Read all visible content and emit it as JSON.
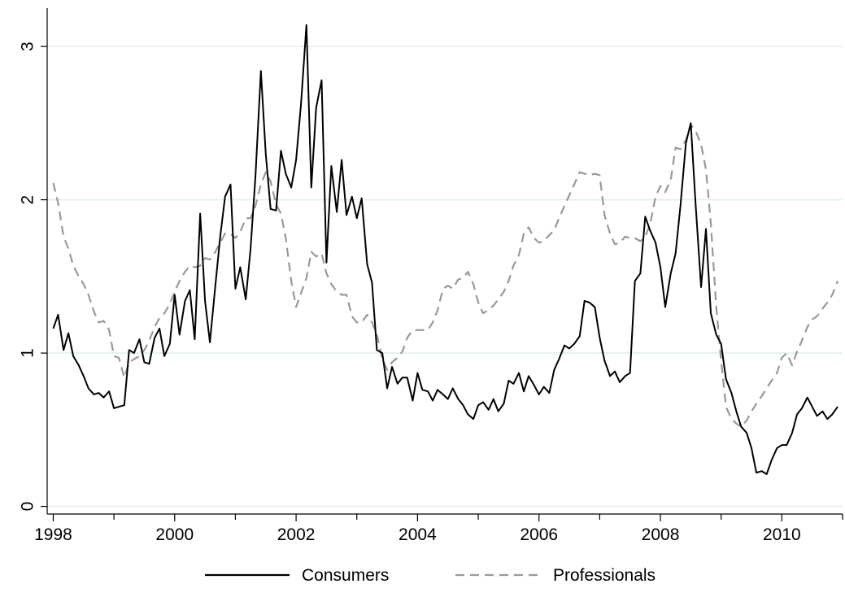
{
  "chart_data": {
    "type": "line",
    "title": "",
    "xlabel": "",
    "ylabel": "",
    "xlim": [
      1997.9,
      2011.0
    ],
    "ylim": [
      -0.05,
      3.25
    ],
    "x_ticks": [
      1998,
      2000,
      2002,
      2004,
      2006,
      2008,
      2010
    ],
    "x_tick_labels": [
      "1998",
      "2000",
      "2002",
      "2004",
      "2006",
      "2008",
      "2010"
    ],
    "y_ticks": [
      0,
      1,
      2,
      3
    ],
    "y_tick_labels": [
      "0",
      "1",
      "2",
      "3"
    ],
    "grid": "horizontal",
    "legend_position": "bottom",
    "series": [
      {
        "name": "Consumers",
        "color": "#000000",
        "dash": "solid",
        "x": [
          1998.0,
          1998.08,
          1998.17,
          1998.25,
          1998.33,
          1998.42,
          1998.5,
          1998.58,
          1998.67,
          1998.75,
          1998.83,
          1998.92,
          1999.0,
          1999.08,
          1999.17,
          1999.25,
          1999.33,
          1999.42,
          1999.5,
          1999.58,
          1999.67,
          1999.75,
          1999.83,
          1999.92,
          2000.0,
          2000.08,
          2000.17,
          2000.25,
          2000.33,
          2000.42,
          2000.5,
          2000.58,
          2000.67,
          2000.75,
          2000.83,
          2000.92,
          2001.0,
          2001.08,
          2001.17,
          2001.25,
          2001.33,
          2001.42,
          2001.5,
          2001.58,
          2001.67,
          2001.75,
          2001.83,
          2001.92,
          2002.0,
          2002.08,
          2002.17,
          2002.25,
          2002.33,
          2002.42,
          2002.5,
          2002.58,
          2002.67,
          2002.75,
          2002.83,
          2002.92,
          2003.0,
          2003.08,
          2003.17,
          2003.25,
          2003.33,
          2003.42,
          2003.5,
          2003.58,
          2003.67,
          2003.75,
          2003.83,
          2003.92,
          2004.0,
          2004.08,
          2004.17,
          2004.25,
          2004.33,
          2004.42,
          2004.5,
          2004.58,
          2004.67,
          2004.75,
          2004.83,
          2004.92,
          2005.0,
          2005.08,
          2005.17,
          2005.25,
          2005.33,
          2005.42,
          2005.5,
          2005.58,
          2005.67,
          2005.75,
          2005.83,
          2005.92,
          2006.0,
          2006.08,
          2006.17,
          2006.25,
          2006.33,
          2006.42,
          2006.5,
          2006.58,
          2006.67,
          2006.75,
          2006.83,
          2006.92,
          2007.0,
          2007.08,
          2007.17,
          2007.25,
          2007.33,
          2007.42,
          2007.5,
          2007.58,
          2007.67,
          2007.75,
          2007.83,
          2007.92,
          2008.0,
          2008.08,
          2008.17,
          2008.25,
          2008.33,
          2008.42,
          2008.5,
          2008.58,
          2008.67,
          2008.75,
          2008.83,
          2008.92,
          2009.0,
          2009.08,
          2009.17,
          2009.25,
          2009.33,
          2009.42,
          2009.5,
          2009.58,
          2009.67,
          2009.75,
          2009.83,
          2009.92,
          2010.0,
          2010.08,
          2010.17,
          2010.25,
          2010.33,
          2010.42,
          2010.5,
          2010.58,
          2010.67,
          2010.75,
          2010.83,
          2010.92
        ],
        "values": [
          1.16,
          1.25,
          1.02,
          1.13,
          0.98,
          0.92,
          0.85,
          0.77,
          0.73,
          0.74,
          0.71,
          0.75,
          0.64,
          0.65,
          0.66,
          1.02,
          1.0,
          1.09,
          0.94,
          0.93,
          1.1,
          1.16,
          0.98,
          1.06,
          1.38,
          1.12,
          1.34,
          1.41,
          1.09,
          1.91,
          1.34,
          1.07,
          1.44,
          1.76,
          2.02,
          2.1,
          1.42,
          1.56,
          1.35,
          1.68,
          2.15,
          2.84,
          2.3,
          1.94,
          1.93,
          2.32,
          2.17,
          2.08,
          2.26,
          2.62,
          3.14,
          2.08,
          2.6,
          2.78,
          1.59,
          2.22,
          1.92,
          2.26,
          1.9,
          2.02,
          1.88,
          2.01,
          1.58,
          1.46,
          1.02,
          1.0,
          0.77,
          0.91,
          0.8,
          0.84,
          0.84,
          0.69,
          0.87,
          0.76,
          0.75,
          0.69,
          0.76,
          0.73,
          0.7,
          0.77,
          0.7,
          0.66,
          0.6,
          0.57,
          0.66,
          0.68,
          0.63,
          0.7,
          0.62,
          0.67,
          0.82,
          0.8,
          0.87,
          0.75,
          0.85,
          0.79,
          0.73,
          0.78,
          0.74,
          0.89,
          0.96,
          1.05,
          1.03,
          1.06,
          1.11,
          1.34,
          1.33,
          1.3,
          1.1,
          0.95,
          0.85,
          0.88,
          0.81,
          0.85,
          0.87,
          1.47,
          1.52,
          1.89,
          1.8,
          1.72,
          1.56,
          1.3,
          1.52,
          1.65,
          1.96,
          2.37,
          2.5,
          1.97,
          1.43,
          1.81,
          1.26,
          1.12,
          1.06,
          0.83,
          0.74,
          0.62,
          0.52,
          0.48,
          0.38,
          0.22,
          0.23,
          0.21,
          0.3,
          0.38,
          0.4,
          0.4,
          0.48,
          0.6,
          0.64,
          0.71,
          0.65,
          0.59,
          0.62,
          0.57,
          0.6,
          0.65
        ]
      },
      {
        "name": "Professionals",
        "color": "#999999",
        "dash": "dashed",
        "x": [
          1998.0,
          1998.08,
          1998.17,
          1998.25,
          1998.33,
          1998.42,
          1998.5,
          1998.58,
          1998.67,
          1998.75,
          1998.83,
          1998.92,
          1999.0,
          1999.08,
          1999.17,
          1999.25,
          1999.33,
          1999.42,
          1999.5,
          1999.58,
          1999.67,
          1999.75,
          1999.83,
          1999.92,
          2000.0,
          2000.08,
          2000.17,
          2000.25,
          2000.33,
          2000.42,
          2000.5,
          2000.58,
          2000.67,
          2000.75,
          2000.83,
          2000.92,
          2001.0,
          2001.08,
          2001.17,
          2001.25,
          2001.33,
          2001.42,
          2001.5,
          2001.58,
          2001.67,
          2001.75,
          2001.83,
          2001.92,
          2002.0,
          2002.08,
          2002.17,
          2002.25,
          2002.33,
          2002.42,
          2002.5,
          2002.58,
          2002.67,
          2002.75,
          2002.83,
          2002.92,
          2003.0,
          2003.08,
          2003.17,
          2003.25,
          2003.33,
          2003.42,
          2003.5,
          2003.58,
          2003.67,
          2003.75,
          2003.83,
          2003.92,
          2004.0,
          2004.08,
          2004.17,
          2004.25,
          2004.33,
          2004.42,
          2004.5,
          2004.58,
          2004.67,
          2004.75,
          2004.83,
          2004.92,
          2005.0,
          2005.08,
          2005.17,
          2005.25,
          2005.33,
          2005.42,
          2005.5,
          2005.58,
          2005.67,
          2005.75,
          2005.83,
          2005.92,
          2006.0,
          2006.08,
          2006.17,
          2006.25,
          2006.33,
          2006.42,
          2006.5,
          2006.58,
          2006.67,
          2006.75,
          2006.83,
          2006.92,
          2007.0,
          2007.08,
          2007.17,
          2007.25,
          2007.33,
          2007.42,
          2007.5,
          2007.58,
          2007.67,
          2007.75,
          2007.83,
          2007.92,
          2008.0,
          2008.08,
          2008.17,
          2008.25,
          2008.33,
          2008.42,
          2008.5,
          2008.58,
          2008.67,
          2008.75,
          2008.83,
          2008.92,
          2009.0,
          2009.08,
          2009.17,
          2009.25,
          2009.33,
          2009.42,
          2009.5,
          2009.58,
          2009.67,
          2009.75,
          2009.83,
          2009.92,
          2010.0,
          2010.08,
          2010.17,
          2010.25,
          2010.33,
          2010.42,
          2010.5,
          2010.58,
          2010.67,
          2010.75,
          2010.83,
          2010.92
        ],
        "values": [
          2.11,
          1.98,
          1.76,
          1.68,
          1.57,
          1.5,
          1.45,
          1.38,
          1.27,
          1.2,
          1.21,
          1.15,
          0.98,
          0.97,
          0.84,
          0.94,
          0.96,
          0.98,
          1.02,
          1.08,
          1.17,
          1.23,
          1.26,
          1.32,
          1.4,
          1.47,
          1.53,
          1.57,
          1.56,
          1.57,
          1.62,
          1.61,
          1.66,
          1.72,
          1.78,
          1.78,
          1.75,
          1.79,
          1.88,
          1.88,
          1.96,
          2.1,
          2.18,
          2.12,
          1.97,
          1.91,
          1.75,
          1.47,
          1.3,
          1.39,
          1.49,
          1.66,
          1.63,
          1.65,
          1.52,
          1.45,
          1.4,
          1.38,
          1.38,
          1.24,
          1.2,
          1.2,
          1.25,
          1.2,
          1.12,
          0.96,
          0.89,
          0.94,
          0.97,
          1.01,
          1.1,
          1.15,
          1.15,
          1.15,
          1.15,
          1.2,
          1.28,
          1.42,
          1.44,
          1.42,
          1.48,
          1.49,
          1.53,
          1.45,
          1.33,
          1.26,
          1.28,
          1.31,
          1.35,
          1.4,
          1.47,
          1.57,
          1.64,
          1.78,
          1.82,
          1.75,
          1.72,
          1.73,
          1.77,
          1.8,
          1.88,
          1.96,
          2.03,
          2.1,
          2.18,
          2.17,
          2.16,
          2.17,
          2.16,
          1.9,
          1.78,
          1.71,
          1.72,
          1.76,
          1.75,
          1.75,
          1.73,
          1.76,
          1.84,
          2.02,
          2.09,
          2.05,
          2.13,
          2.34,
          2.33,
          2.39,
          2.49,
          2.45,
          2.36,
          2.2,
          1.85,
          1.3,
          0.95,
          0.65,
          0.57,
          0.54,
          0.52,
          0.56,
          0.62,
          0.67,
          0.72,
          0.77,
          0.82,
          0.87,
          0.97,
          1.0,
          0.92,
          1.01,
          1.08,
          1.17,
          1.22,
          1.24,
          1.29,
          1.33,
          1.38,
          1.47
        ]
      }
    ]
  }
}
